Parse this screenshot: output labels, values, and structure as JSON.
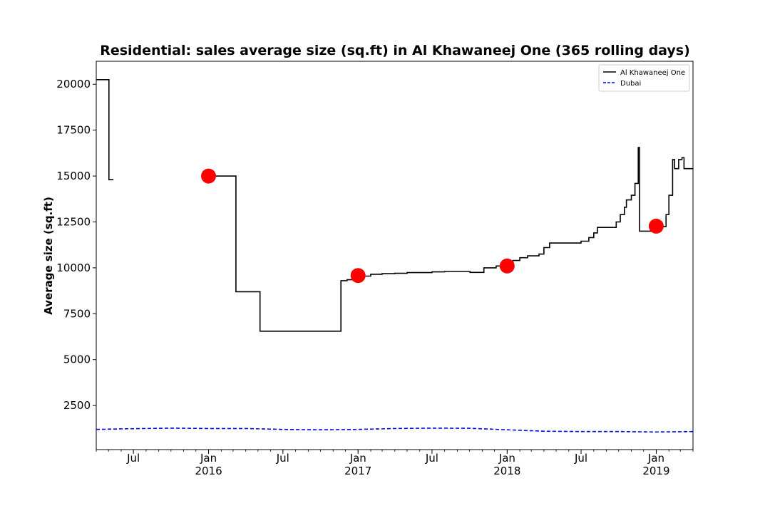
{
  "chart_data": {
    "type": "line",
    "title": "Residential: sales average size (sq.ft) in Al Khawaneej One (365 rolling days)",
    "xlabel": "",
    "ylabel": "Average size (sq.ft)",
    "xlim": [
      "2015-04-01",
      "2019-04-01"
    ],
    "ylim": [
      100,
      21250
    ],
    "grid": false,
    "legend_position": "top-right",
    "y_ticks": [
      2500,
      5000,
      7500,
      10000,
      12500,
      15000,
      17500,
      20000
    ],
    "x_ticks": [
      {
        "date": "2015-07-01",
        "label": "Jul"
      },
      {
        "date": "2016-01-01",
        "label": "Jan",
        "year": "2016"
      },
      {
        "date": "2016-07-01",
        "label": "Jul"
      },
      {
        "date": "2017-01-01",
        "label": "Jan",
        "year": "2017"
      },
      {
        "date": "2017-07-01",
        "label": "Jul"
      },
      {
        "date": "2018-01-01",
        "label": "Jan",
        "year": "2018"
      },
      {
        "date": "2018-07-01",
        "label": "Jul"
      },
      {
        "date": "2019-01-01",
        "label": "Jan",
        "year": "2019"
      }
    ],
    "series": [
      {
        "name": "Al Khawaneej One",
        "color": "#000000",
        "style": "solid",
        "step": true,
        "segments": [
          [
            [
              "2015-04-01",
              20250
            ],
            [
              "2015-05-01",
              20250
            ],
            [
              "2015-05-02",
              14800
            ],
            [
              "2015-05-13",
              14800
            ]
          ],
          [
            [
              "2016-01-01",
              15000
            ],
            [
              "2016-03-07",
              15000
            ],
            [
              "2016-03-08",
              8700
            ],
            [
              "2016-05-05",
              8700
            ],
            [
              "2016-05-06",
              6550
            ],
            [
              "2016-11-15",
              6550
            ],
            [
              "2016-11-20",
              9300
            ],
            [
              "2016-12-05",
              9350
            ],
            [
              "2016-12-20",
              9450
            ],
            [
              "2017-01-01",
              9550
            ],
            [
              "2017-02-01",
              9650
            ],
            [
              "2017-03-01",
              9680
            ],
            [
              "2017-04-01",
              9700
            ],
            [
              "2017-05-01",
              9740
            ],
            [
              "2017-07-01",
              9780
            ],
            [
              "2017-08-01",
              9800
            ],
            [
              "2017-10-01",
              9800
            ],
            [
              "2017-10-02",
              9750
            ],
            [
              "2017-11-01",
              9750
            ],
            [
              "2017-11-05",
              10000
            ],
            [
              "2017-12-05",
              10100
            ],
            [
              "2018-01-01",
              10150
            ],
            [
              "2018-01-15",
              10400
            ],
            [
              "2018-02-01",
              10550
            ],
            [
              "2018-02-20",
              10650
            ],
            [
              "2018-03-20",
              10750
            ],
            [
              "2018-04-01",
              11100
            ],
            [
              "2018-04-15",
              11350
            ],
            [
              "2018-06-20",
              11350
            ],
            [
              "2018-07-01",
              11450
            ],
            [
              "2018-07-20",
              11650
            ],
            [
              "2018-08-01",
              11900
            ],
            [
              "2018-08-10",
              12200
            ],
            [
              "2018-09-20",
              12200
            ],
            [
              "2018-09-25",
              12500
            ],
            [
              "2018-10-05",
              12900
            ],
            [
              "2018-10-15",
              13300
            ],
            [
              "2018-10-20",
              13700
            ],
            [
              "2018-11-01",
              13950
            ],
            [
              "2018-11-10",
              14600
            ],
            [
              "2018-11-18",
              16550
            ],
            [
              "2018-11-21",
              12000
            ],
            [
              "2018-12-25",
              12000
            ],
            [
              "2019-01-01",
              12250
            ],
            [
              "2019-01-20",
              12250
            ],
            [
              "2019-01-25",
              12900
            ],
            [
              "2019-02-01",
              13950
            ],
            [
              "2019-02-10",
              15900
            ],
            [
              "2019-02-15",
              15400
            ],
            [
              "2019-02-25",
              15900
            ],
            [
              "2019-03-05",
              16000
            ],
            [
              "2019-03-10",
              15400
            ],
            [
              "2019-04-01",
              15400
            ]
          ]
        ]
      },
      {
        "name": "Dubai",
        "color": "#0000ff",
        "style": "dashed",
        "points": [
          [
            "2015-04-01",
            1200
          ],
          [
            "2015-06-01",
            1230
          ],
          [
            "2015-10-01",
            1270
          ],
          [
            "2016-01-01",
            1250
          ],
          [
            "2016-04-01",
            1250
          ],
          [
            "2016-07-01",
            1200
          ],
          [
            "2016-10-01",
            1180
          ],
          [
            "2017-01-01",
            1200
          ],
          [
            "2017-04-01",
            1250
          ],
          [
            "2017-07-01",
            1270
          ],
          [
            "2017-10-01",
            1260
          ],
          [
            "2018-01-01",
            1180
          ],
          [
            "2018-04-01",
            1100
          ],
          [
            "2018-07-01",
            1080
          ],
          [
            "2018-10-01",
            1080
          ],
          [
            "2019-01-01",
            1060
          ],
          [
            "2019-04-01",
            1080
          ]
        ]
      }
    ],
    "highlight_points": {
      "color": "#ff0000",
      "points": [
        [
          "2016-01-01",
          15000
        ],
        [
          "2017-01-01",
          9580
        ],
        [
          "2018-01-01",
          10100
        ],
        [
          "2019-01-01",
          12270
        ]
      ]
    }
  }
}
